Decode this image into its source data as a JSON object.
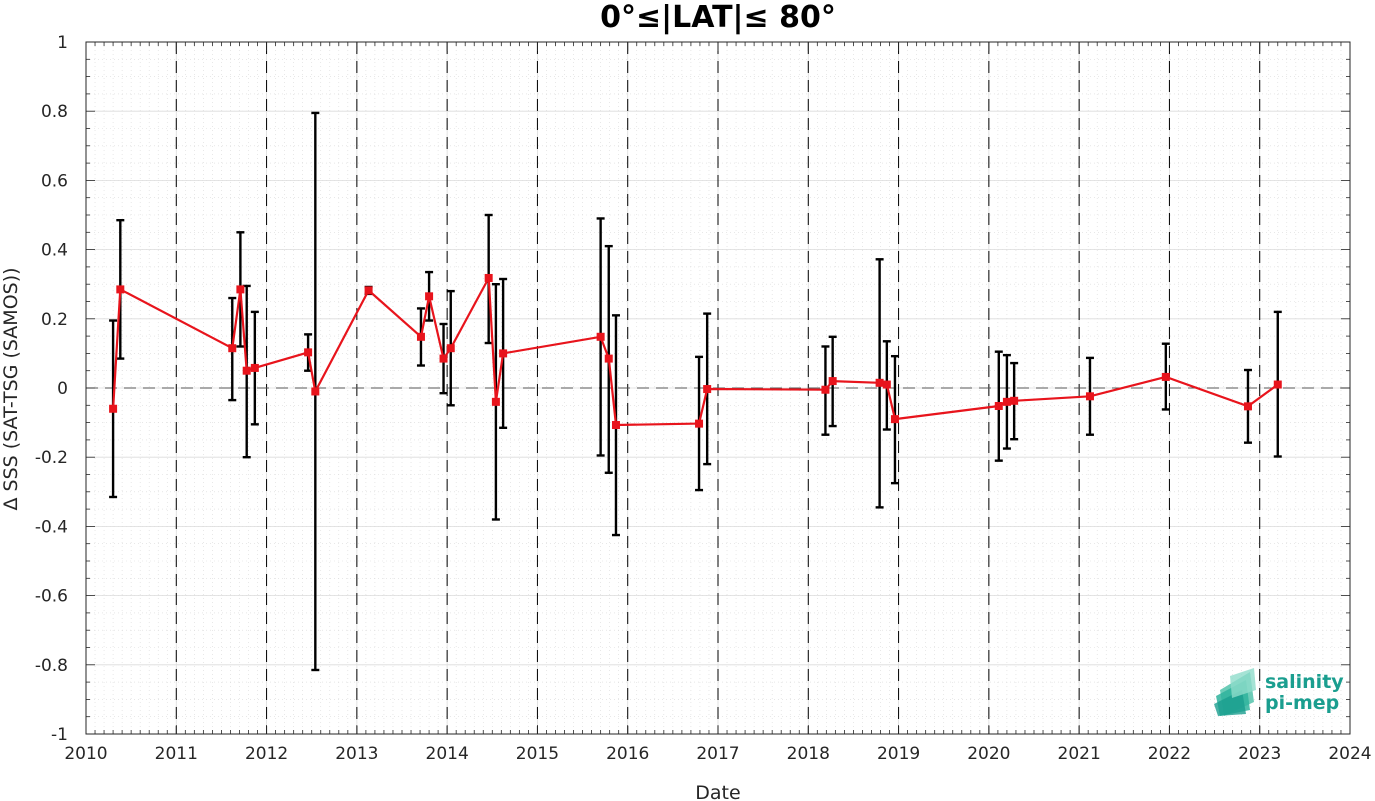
{
  "chart_data": {
    "type": "line",
    "title": "0°≤|LAT|≤ 80°",
    "xlabel": "Date",
    "ylabel": "Δ SSS (SAT-TSG (SAMOS))",
    "xlim": [
      2010,
      2024
    ],
    "ylim": [
      -1,
      1
    ],
    "x_ticks": [
      "2010",
      "2011",
      "2012",
      "2013",
      "2014",
      "2015",
      "2016",
      "2017",
      "2018",
      "2019",
      "2020",
      "2021",
      "2022",
      "2023",
      "2024"
    ],
    "y_ticks": [
      "1",
      "0.8",
      "0.6",
      "0.4",
      "0.2",
      "0",
      "-0.2",
      "-0.4",
      "-0.6",
      "-0.8",
      "-1"
    ],
    "grid": true,
    "minor_grid": true,
    "zero_line": 0,
    "year_separators": [
      2011,
      2012,
      2013,
      2014,
      2015,
      2016,
      2017,
      2018,
      2019,
      2020,
      2021,
      2022,
      2023
    ],
    "series": [
      {
        "color": "#e8141c",
        "marker": "square",
        "points": [
          {
            "x": 2010.3,
            "y": -0.06,
            "ylo": -0.315,
            "yhi": 0.195
          },
          {
            "x": 2010.38,
            "y": 0.285,
            "ylo": 0.085,
            "yhi": 0.485
          },
          {
            "x": 2011.62,
            "y": 0.115,
            "ylo": -0.035,
            "yhi": 0.26
          },
          {
            "x": 2011.71,
            "y": 0.285,
            "ylo": 0.12,
            "yhi": 0.45
          },
          {
            "x": 2011.78,
            "y": 0.05,
            "ylo": -0.2,
            "yhi": 0.295
          },
          {
            "x": 2011.87,
            "y": 0.058,
            "ylo": -0.105,
            "yhi": 0.22
          },
          {
            "x": 2012.46,
            "y": 0.103,
            "ylo": 0.05,
            "yhi": 0.155
          },
          {
            "x": 2012.54,
            "y": -0.01,
            "ylo": -0.815,
            "yhi": 0.795
          },
          {
            "x": 2013.13,
            "y": 0.282,
            "ylo": 0.272,
            "yhi": 0.292
          },
          {
            "x": 2013.71,
            "y": 0.148,
            "ylo": 0.065,
            "yhi": 0.23
          },
          {
            "x": 2013.8,
            "y": 0.265,
            "ylo": 0.195,
            "yhi": 0.335
          },
          {
            "x": 2013.96,
            "y": 0.085,
            "ylo": -0.015,
            "yhi": 0.185
          },
          {
            "x": 2014.04,
            "y": 0.115,
            "ylo": -0.05,
            "yhi": 0.28
          },
          {
            "x": 2014.46,
            "y": 0.318,
            "ylo": 0.13,
            "yhi": 0.5
          },
          {
            "x": 2014.54,
            "y": -0.04,
            "ylo": -0.38,
            "yhi": 0.3
          },
          {
            "x": 2014.62,
            "y": 0.1,
            "ylo": -0.115,
            "yhi": 0.315
          },
          {
            "x": 2015.7,
            "y": 0.148,
            "ylo": -0.195,
            "yhi": 0.49
          },
          {
            "x": 2015.79,
            "y": 0.085,
            "ylo": -0.245,
            "yhi": 0.41
          },
          {
            "x": 2015.87,
            "y": -0.107,
            "ylo": -0.425,
            "yhi": 0.21
          },
          {
            "x": 2016.79,
            "y": -0.103,
            "ylo": -0.295,
            "yhi": 0.09
          },
          {
            "x": 2016.88,
            "y": -0.003,
            "ylo": -0.22,
            "yhi": 0.215
          },
          {
            "x": 2018.19,
            "y": -0.005,
            "ylo": -0.135,
            "yhi": 0.12
          },
          {
            "x": 2018.27,
            "y": 0.02,
            "ylo": -0.11,
            "yhi": 0.148
          },
          {
            "x": 2018.79,
            "y": 0.015,
            "ylo": -0.345,
            "yhi": 0.372
          },
          {
            "x": 2018.87,
            "y": 0.01,
            "ylo": -0.12,
            "yhi": 0.135
          },
          {
            "x": 2018.96,
            "y": -0.09,
            "ylo": -0.275,
            "yhi": 0.092
          },
          {
            "x": 2020.11,
            "y": -0.052,
            "ylo": -0.21,
            "yhi": 0.105
          },
          {
            "x": 2020.2,
            "y": -0.04,
            "ylo": -0.175,
            "yhi": 0.095
          },
          {
            "x": 2020.28,
            "y": -0.037,
            "ylo": -0.148,
            "yhi": 0.072
          },
          {
            "x": 2021.12,
            "y": -0.024,
            "ylo": -0.135,
            "yhi": 0.087
          },
          {
            "x": 2021.96,
            "y": 0.032,
            "ylo": -0.062,
            "yhi": 0.128
          },
          {
            "x": 2022.87,
            "y": -0.053,
            "ylo": -0.158,
            "yhi": 0.052
          },
          {
            "x": 2023.2,
            "y": 0.01,
            "ylo": -0.198,
            "yhi": 0.22
          }
        ]
      }
    ]
  },
  "logo": {
    "line1": "salinity",
    "line2": "pi-mep",
    "color": "#1a9e8f"
  }
}
